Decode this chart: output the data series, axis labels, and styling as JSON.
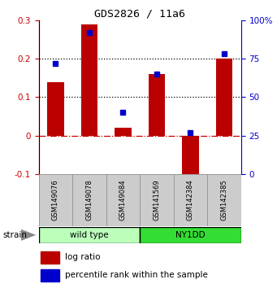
{
  "title": "GDS2826 / 11a6",
  "samples": [
    "GSM149076",
    "GSM149078",
    "GSM149084",
    "GSM141569",
    "GSM142384",
    "GSM142385"
  ],
  "log_ratio": [
    0.14,
    0.29,
    0.02,
    0.16,
    -0.12,
    0.2
  ],
  "percentile_rank": [
    72,
    92,
    40,
    65,
    27,
    78
  ],
  "bar_color": "#bb0000",
  "dot_color": "#0000cc",
  "ylim_left": [
    -0.1,
    0.3
  ],
  "ylim_right": [
    0,
    100
  ],
  "yticks_left": [
    -0.1,
    0.0,
    0.1,
    0.2,
    0.3
  ],
  "yticks_right": [
    0,
    25,
    50,
    75,
    100
  ],
  "hlines": [
    0.1,
    0.2
  ],
  "hline_color": "black",
  "zero_line_color": "#cc0000",
  "bg_color": "#ffffff",
  "sample_box_color": "#cccccc",
  "left_label_color": "#cc0000",
  "right_label_color": "#0000cc",
  "wt_color": "#bbffbb",
  "ny_color": "#33dd33",
  "arrow_color": "#888888",
  "bar_width": 0.5
}
